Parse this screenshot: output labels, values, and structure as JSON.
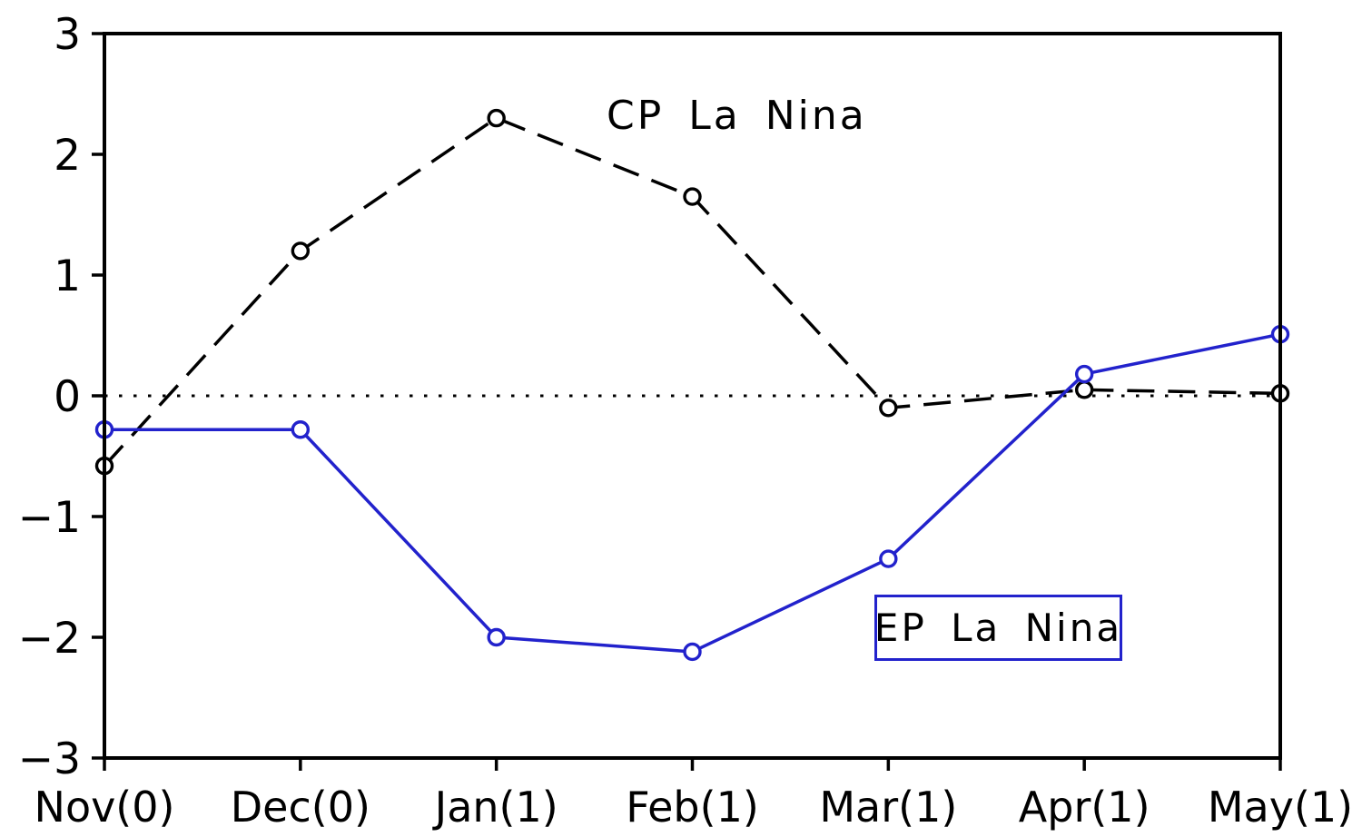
{
  "figure": {
    "background_color": "#ffffff",
    "axis_color": "#000000"
  },
  "colors": {
    "cp_series": "#000000",
    "ep_series": "#2222cc",
    "marker_fill": "#ffffff"
  },
  "chart_data": {
    "type": "line",
    "title": "",
    "xlabel": "",
    "ylabel": "",
    "categories": [
      "Nov(0)",
      "Dec(0)",
      "Jan(1)",
      "Feb(1)",
      "Mar(1)",
      "Apr(1)",
      "May(1)"
    ],
    "series": [
      {
        "name": "CP La Nina",
        "line_style": "dashed",
        "marker": "circle-open",
        "color": "#000000",
        "values": [
          -0.58,
          1.2,
          2.3,
          1.65,
          -0.1,
          0.05,
          0.02
        ]
      },
      {
        "name": "EP La Nina",
        "line_style": "solid",
        "marker": "circle-open",
        "color": "#2222cc",
        "values": [
          -0.28,
          -0.28,
          -2.0,
          -2.12,
          -1.35,
          0.18,
          0.51
        ]
      }
    ],
    "ylim": [
      -3,
      3
    ],
    "ytick_values": [
      -3,
      -2,
      -1,
      0,
      1,
      2,
      3
    ],
    "ytick_labels": [
      "−3",
      "−2",
      "−1",
      "0",
      "1",
      "2",
      "3"
    ],
    "zero_line": "dotted",
    "grid": "off",
    "legend_position": "inline-annotations"
  }
}
